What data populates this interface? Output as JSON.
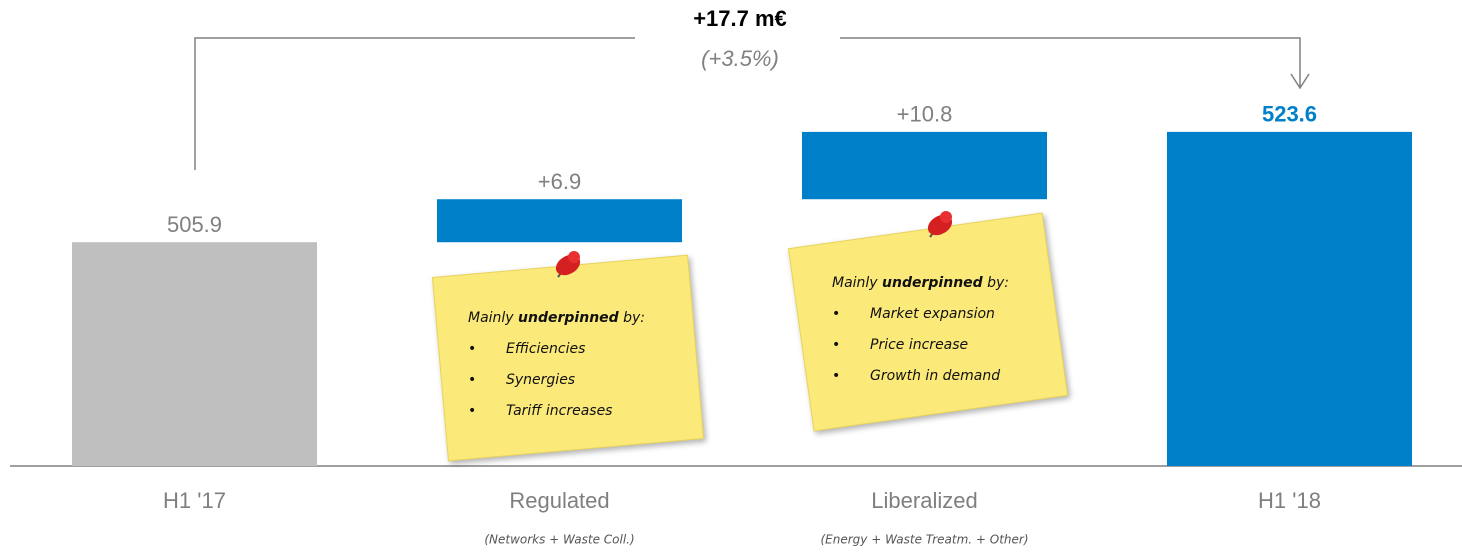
{
  "chart_data": {
    "type": "waterfall",
    "categories": [
      "H1 '17",
      "Regulated",
      "Liberalized",
      "H1 '18"
    ],
    "sublabels": [
      null,
      "(Networks + Waste Coll.)",
      "(Energy + Waste Treatm. + Other)",
      null
    ],
    "measure": [
      "absolute",
      "relative",
      "relative",
      "total"
    ],
    "values": [
      505.9,
      6.9,
      10.8,
      523.6
    ],
    "value_labels": [
      "505.9",
      "+6.9",
      "+10.8",
      "523.6"
    ],
    "colors": [
      "#bfbfbf",
      "#0080c8",
      "#0080c8",
      "#0080c8"
    ],
    "ylim": [
      470,
      530
    ],
    "annotations": [
      "+17.7 m€",
      "(+3.5%)"
    ],
    "notes": [
      {
        "heading": [
          "Mainly ",
          "underpinned",
          " by:"
        ],
        "items": [
          "Efficiencies",
          "Synergies",
          "Tariff increases"
        ]
      },
      {
        "heading": [
          "Mainly ",
          "underpinned",
          " by:"
        ],
        "items": [
          "Market expansion",
          "Price increase",
          "Growth in demand"
        ]
      }
    ]
  }
}
